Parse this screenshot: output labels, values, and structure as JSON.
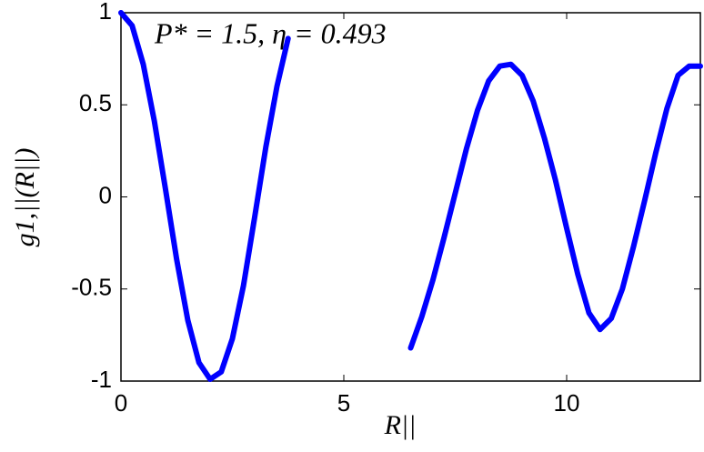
{
  "chart_data": {
    "type": "line",
    "annotation": "P* = 1.5, η = 0.493",
    "x_label": "R||",
    "y_label": "g1,||(R||)",
    "x": [
      0,
      0.25,
      0.5,
      0.75,
      1.0,
      1.25,
      1.5,
      1.75,
      2.0,
      2.25,
      2.5,
      2.75,
      3.0,
      3.25,
      3.5,
      3.75,
      5.0,
      6.5,
      6.75,
      7.0,
      7.25,
      7.5,
      7.75,
      8.0,
      8.25,
      8.5,
      8.75,
      9.0,
      9.25,
      9.5,
      9.75,
      10.0,
      10.25,
      10.5,
      10.75,
      11.0,
      11.25,
      11.5,
      11.75,
      12.0,
      12.25,
      12.5,
      12.75,
      13.0
    ],
    "series": [
      {
        "name": "g",
        "color": "#0000ff",
        "values": [
          1,
          0.93,
          0.72,
          0.41,
          0.04,
          -0.34,
          -0.67,
          -0.9,
          -0.99,
          -0.95,
          -0.77,
          -0.48,
          -0.11,
          0.27,
          0.6,
          0.86,
          null,
          -0.82,
          -0.65,
          -0.45,
          -0.22,
          0.02,
          0.26,
          0.47,
          0.63,
          0.71,
          0.72,
          0.66,
          0.52,
          0.32,
          0.09,
          -0.17,
          -0.42,
          -0.63,
          -0.72,
          -0.66,
          -0.5,
          -0.27,
          -0.02,
          0.24,
          0.48,
          0.66,
          0.71,
          0.71
        ]
      }
    ],
    "xlim": [
      0,
      13
    ],
    "ylim": [
      -1,
      1
    ],
    "xticks": [
      0,
      5,
      10
    ],
    "yticks": [
      -1,
      -0.5,
      0,
      0.5,
      1
    ],
    "grid": false
  }
}
